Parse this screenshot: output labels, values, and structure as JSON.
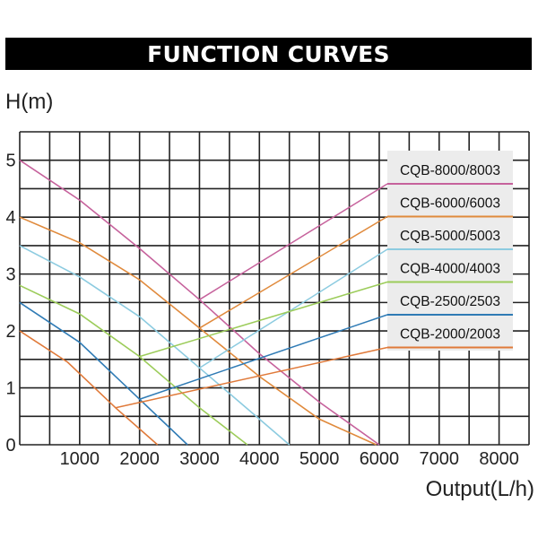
{
  "title": "FUNCTION CURVES",
  "chart_data": {
    "type": "line",
    "title": "FUNCTION CURVES",
    "ylabel": "H(m)",
    "xlabel": "Output(L/h)",
    "xlim": [
      0,
      8500
    ],
    "ylim": [
      0,
      5.5
    ],
    "x_ticks": [
      "1000",
      "2000",
      "3000",
      "4000",
      "5000",
      "6000",
      "7000",
      "8000"
    ],
    "y_ticks": [
      "0",
      "1",
      "2",
      "3",
      "4",
      "5"
    ],
    "grid": true,
    "legend_position": "right",
    "series": [
      {
        "name": "CQB-8000/8003",
        "color": "#c6629c",
        "x": [
          0,
          1000,
          2000,
          3000,
          4000,
          5000,
          6000
        ],
        "y": [
          5.0,
          4.3,
          3.45,
          2.55,
          1.6,
          0.75,
          0.0
        ]
      },
      {
        "name": "CQB-6000/6003",
        "color": "#e08a3c",
        "x": [
          0,
          1000,
          2000,
          3000,
          4000,
          5000,
          5950
        ],
        "y": [
          4.0,
          3.55,
          2.9,
          2.05,
          1.2,
          0.45,
          0.0
        ]
      },
      {
        "name": "CQB-5000/5003",
        "color": "#8ccbe0",
        "x": [
          0,
          1000,
          2000,
          3000,
          4000,
          4500
        ],
        "y": [
          3.5,
          2.95,
          2.25,
          1.35,
          0.45,
          0.0
        ]
      },
      {
        "name": "CQB-4000/4003",
        "color": "#9ccc5a",
        "x": [
          0,
          1000,
          2000,
          3000,
          3800
        ],
        "y": [
          2.8,
          2.3,
          1.55,
          0.65,
          0.0
        ]
      },
      {
        "name": "CQB-2500/2503",
        "color": "#2f7bb5",
        "x": [
          0,
          1000,
          2000,
          2800
        ],
        "y": [
          2.5,
          1.8,
          0.8,
          0.0
        ]
      },
      {
        "name": "CQB-2000/2003",
        "color": "#e07a3a",
        "x": [
          0,
          800,
          1600,
          2300
        ],
        "y": [
          2.0,
          1.45,
          0.65,
          0.0
        ]
      }
    ]
  }
}
